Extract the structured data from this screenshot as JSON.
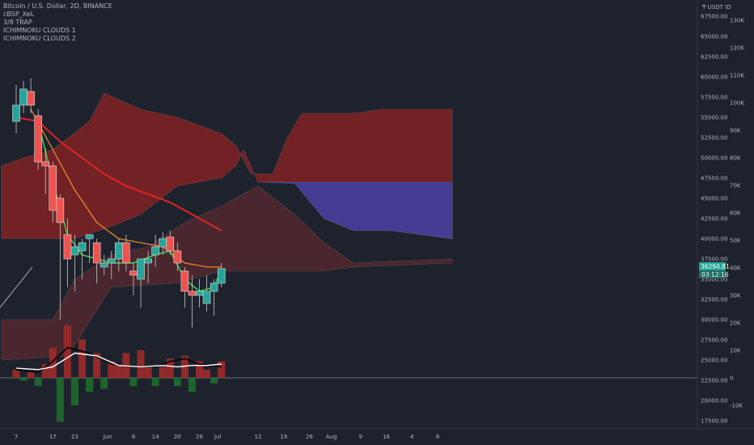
{
  "legend": {
    "symbol": "Bitcoin / U.S. Dollar, 2D, BINANCE",
    "indicators": [
      "cBSP_XeL",
      "3/8 TRAP",
      "ICHIMNOKU CLOUDS 1",
      "ICHIMNOKU CLOUDS 2"
    ]
  },
  "colors": {
    "background": "#1e222d",
    "up_candle": "#26a69a",
    "down_candle": "#ef5350",
    "bull_cloud": "#3f3fa0",
    "bear_cloud": "#8b2323",
    "ma_red": "#e02424",
    "ma_orange": "#e8882d",
    "ma_green": "#39d353"
  },
  "price_axis": {
    "currency_label": "₸ USDT ID",
    "ticks": [
      "67500.00",
      "65000.00",
      "62500.00",
      "60000.00",
      "57500.00",
      "55000.00",
      "52500.00",
      "50000.00",
      "47500.00",
      "45000.00",
      "42500.00",
      "40000.00",
      "37500.00",
      "35000.00",
      "32500.00",
      "30000.00",
      "27500.00",
      "25000.00",
      "22500.00",
      "20000.00",
      "17500.00"
    ],
    "current_price": "36294.81",
    "countdown": "03:12:16"
  },
  "osc_axis": {
    "ticks": [
      "130K",
      "120K",
      "110K",
      "100K",
      "90K",
      "80K",
      "70K",
      "60K",
      "50K",
      "40K",
      "30K",
      "20K",
      "10K",
      "0",
      "-10K"
    ]
  },
  "time_axis": {
    "ticks": [
      {
        "label": "7",
        "date": "2021-05-07"
      },
      {
        "label": "17",
        "date": "2021-05-17"
      },
      {
        "label": "23",
        "date": "2021-05-23"
      },
      {
        "label": "Jun",
        "date": "2021-06-01"
      },
      {
        "label": "8",
        "date": "2021-06-08"
      },
      {
        "label": "14",
        "date": "2021-06-14"
      },
      {
        "label": "20",
        "date": "2021-06-20"
      },
      {
        "label": "26",
        "date": "2021-06-26"
      },
      {
        "label": "Jul",
        "date": "2021-07-01"
      },
      {
        "label": "12",
        "date": "2021-07-12"
      },
      {
        "label": "19",
        "date": "2021-07-19"
      },
      {
        "label": "26",
        "date": "2021-07-26"
      },
      {
        "label": "Aug",
        "date": "2021-08-01"
      },
      {
        "label": "9",
        "date": "2021-08-09"
      },
      {
        "label": "16",
        "date": "2021-08-16"
      },
      {
        "label": "4",
        "date": "2021-08-23"
      },
      {
        "label": "8",
        "date": "2021-08-30"
      }
    ]
  },
  "chart_data": {
    "type": "candlestick",
    "title": "Bitcoin / U.S. Dollar, 2D, BINANCE",
    "ylim": [
      16500,
      69500
    ],
    "candles": [
      {
        "date": "2021-05-07",
        "o": 54500,
        "h": 59000,
        "l": 53000,
        "c": 56500
      },
      {
        "date": "2021-05-09",
        "o": 56500,
        "h": 59500,
        "l": 55500,
        "c": 58500
      },
      {
        "date": "2021-05-11",
        "o": 58200,
        "h": 59800,
        "l": 55500,
        "c": 56500
      },
      {
        "date": "2021-05-13",
        "o": 55200,
        "h": 56000,
        "l": 48500,
        "c": 49500
      },
      {
        "date": "2021-05-15",
        "o": 49500,
        "h": 51200,
        "l": 45500,
        "c": 49000
      },
      {
        "date": "2021-05-17",
        "o": 49000,
        "h": 49500,
        "l": 42000,
        "c": 43500
      },
      {
        "date": "2021-05-19",
        "o": 45000,
        "h": 45500,
        "l": 30000,
        "c": 42000
      },
      {
        "date": "2021-05-21",
        "o": 40500,
        "h": 42500,
        "l": 34000,
        "c": 37500
      },
      {
        "date": "2021-05-23",
        "o": 38000,
        "h": 40500,
        "l": 33500,
        "c": 39000
      },
      {
        "date": "2021-05-25",
        "o": 38500,
        "h": 40000,
        "l": 35000,
        "c": 39500
      },
      {
        "date": "2021-05-27",
        "o": 40000,
        "h": 40500,
        "l": 37000,
        "c": 40500
      },
      {
        "date": "2021-05-29",
        "o": 39500,
        "h": 40000,
        "l": 34500,
        "c": 37000
      },
      {
        "date": "2021-05-31",
        "o": 36500,
        "h": 38000,
        "l": 35500,
        "c": 37000
      },
      {
        "date": "2021-06-02",
        "o": 37000,
        "h": 38500,
        "l": 35000,
        "c": 37500
      },
      {
        "date": "2021-06-04",
        "o": 37500,
        "h": 40000,
        "l": 36000,
        "c": 39500
      },
      {
        "date": "2021-06-06",
        "o": 39500,
        "h": 40500,
        "l": 36000,
        "c": 37000
      },
      {
        "date": "2021-06-08",
        "o": 36000,
        "h": 37000,
        "l": 33000,
        "c": 35500
      },
      {
        "date": "2021-06-10",
        "o": 35000,
        "h": 37500,
        "l": 31500,
        "c": 37500
      },
      {
        "date": "2021-06-12",
        "o": 37000,
        "h": 38500,
        "l": 34500,
        "c": 37500
      },
      {
        "date": "2021-06-14",
        "o": 38000,
        "h": 40500,
        "l": 36500,
        "c": 39000
      },
      {
        "date": "2021-06-16",
        "o": 39000,
        "h": 40800,
        "l": 38000,
        "c": 40000
      },
      {
        "date": "2021-06-18",
        "o": 40200,
        "h": 41000,
        "l": 38000,
        "c": 38500
      },
      {
        "date": "2021-06-20",
        "o": 38500,
        "h": 39500,
        "l": 36000,
        "c": 37000
      },
      {
        "date": "2021-06-22",
        "o": 36000,
        "h": 36500,
        "l": 31500,
        "c": 33500
      },
      {
        "date": "2021-06-24",
        "o": 33500,
        "h": 35500,
        "l": 29000,
        "c": 33000
      },
      {
        "date": "2021-06-26",
        "o": 33000,
        "h": 35000,
        "l": 31500,
        "c": 33500
      },
      {
        "date": "2021-06-28",
        "o": 32000,
        "h": 35500,
        "l": 31000,
        "c": 33500
      },
      {
        "date": "2021-06-30",
        "o": 33500,
        "h": 35000,
        "l": 30500,
        "c": 34500
      },
      {
        "date": "2021-07-02",
        "o": 34500,
        "h": 37000,
        "l": 34000,
        "c": 36295
      }
    ],
    "ma_red": [
      {
        "date": "2021-05-07",
        "y": 55000
      },
      {
        "date": "2021-05-13",
        "y": 54500
      },
      {
        "date": "2021-05-19",
        "y": 52000
      },
      {
        "date": "2021-05-25",
        "y": 50000
      },
      {
        "date": "2021-05-31",
        "y": 48000
      },
      {
        "date": "2021-06-06",
        "y": 46500
      },
      {
        "date": "2021-06-12",
        "y": 45500
      },
      {
        "date": "2021-06-18",
        "y": 44500
      },
      {
        "date": "2021-06-24",
        "y": 43000
      },
      {
        "date": "2021-07-02",
        "y": 41000
      }
    ],
    "ma_orange": [
      {
        "date": "2021-05-11",
        "y": 56000
      },
      {
        "date": "2021-05-17",
        "y": 51000
      },
      {
        "date": "2021-05-23",
        "y": 46000
      },
      {
        "date": "2021-05-29",
        "y": 42000
      },
      {
        "date": "2021-06-04",
        "y": 40000
      },
      {
        "date": "2021-06-10",
        "y": 39500
      },
      {
        "date": "2021-06-16",
        "y": 39000
      },
      {
        "date": "2021-06-22",
        "y": 37000
      },
      {
        "date": "2021-06-28",
        "y": 36500
      },
      {
        "date": "2021-07-02",
        "y": 36500
      }
    ],
    "ma_green": [
      {
        "date": "2021-05-13",
        "y": 54500
      },
      {
        "date": "2021-05-17",
        "y": 47000
      },
      {
        "date": "2021-05-21",
        "y": 40500
      },
      {
        "date": "2021-05-25",
        "y": 38000
      },
      {
        "date": "2021-05-29",
        "y": 37500
      },
      {
        "date": "2021-06-02",
        "y": 37000
      },
      {
        "date": "2021-06-08",
        "y": 37000
      },
      {
        "date": "2021-06-14",
        "y": 38000
      },
      {
        "date": "2021-06-18",
        "y": 38500
      },
      {
        "date": "2021-06-22",
        "y": 35000
      },
      {
        "date": "2021-06-26",
        "y": 33500
      },
      {
        "date": "2021-06-30",
        "y": 34000
      },
      {
        "date": "2021-07-02",
        "y": 36300
      }
    ],
    "cloud1_upper": [
      {
        "date": "2021-05-03",
        "y": 49000
      },
      {
        "date": "2021-05-09",
        "y": 50000
      },
      {
        "date": "2021-05-17",
        "y": 51000
      },
      {
        "date": "2021-05-27",
        "y": 54500
      },
      {
        "date": "2021-05-31",
        "y": 58000
      },
      {
        "date": "2021-06-10",
        "y": 56000
      },
      {
        "date": "2021-06-20",
        "y": 55000
      },
      {
        "date": "2021-07-02",
        "y": 53000
      },
      {
        "date": "2021-07-06",
        "y": 51500
      },
      {
        "date": "2021-07-10",
        "y": 48000
      },
      {
        "date": "2021-07-16",
        "y": 48000
      },
      {
        "date": "2021-07-20",
        "y": 52500
      },
      {
        "date": "2021-07-24",
        "y": 55500
      },
      {
        "date": "2021-08-07",
        "y": 55500
      },
      {
        "date": "2021-08-15",
        "y": 56000
      },
      {
        "date": "2021-09-03",
        "y": 56000
      }
    ],
    "cloud1_lower": [
      {
        "date": "2021-05-03",
        "y": 40000
      },
      {
        "date": "2021-05-23",
        "y": 40000
      },
      {
        "date": "2021-06-02",
        "y": 41500
      },
      {
        "date": "2021-06-10",
        "y": 43000
      },
      {
        "date": "2021-06-20",
        "y": 46500
      },
      {
        "date": "2021-07-02",
        "y": 47500
      },
      {
        "date": "2021-07-06",
        "y": 49000
      },
      {
        "date": "2021-07-08",
        "y": 51000
      },
      {
        "date": "2021-07-12",
        "y": 47000
      },
      {
        "date": "2021-07-22",
        "y": 47000
      },
      {
        "date": "2021-07-30",
        "y": 42500
      },
      {
        "date": "2021-08-07",
        "y": 41000
      },
      {
        "date": "2021-08-17",
        "y": 41000
      },
      {
        "date": "2021-09-03",
        "y": 40000
      }
    ],
    "cloud2_upper": [
      {
        "date": "2021-05-03",
        "y": 30000
      },
      {
        "date": "2021-05-17",
        "y": 30000
      },
      {
        "date": "2021-05-23",
        "y": 35000
      },
      {
        "date": "2021-06-02",
        "y": 38000
      },
      {
        "date": "2021-06-12",
        "y": 39000
      },
      {
        "date": "2021-06-22",
        "y": 42000
      },
      {
        "date": "2021-07-02",
        "y": 44000
      },
      {
        "date": "2021-07-12",
        "y": 46500
      },
      {
        "date": "2021-07-22",
        "y": 43000
      },
      {
        "date": "2021-07-30",
        "y": 39500
      },
      {
        "date": "2021-08-07",
        "y": 37000
      },
      {
        "date": "2021-09-03",
        "y": 37500
      }
    ],
    "cloud2_lower": [
      {
        "date": "2021-05-03",
        "y": 25000
      },
      {
        "date": "2021-05-21",
        "y": 25500
      },
      {
        "date": "2021-06-02",
        "y": 34000
      },
      {
        "date": "2021-06-20",
        "y": 34500
      },
      {
        "date": "2021-07-02",
        "y": 36000
      },
      {
        "date": "2021-07-30",
        "y": 36000
      },
      {
        "date": "2021-08-07",
        "y": 36500
      },
      {
        "date": "2021-09-03",
        "y": 37000
      }
    ],
    "osc_bars": [
      {
        "date": "2021-05-07",
        "y": 3000
      },
      {
        "date": "2021-05-09",
        "y": -1000
      },
      {
        "date": "2021-05-11",
        "y": 2000
      },
      {
        "date": "2021-05-13",
        "y": -3000
      },
      {
        "date": "2021-05-15",
        "y": 5000
      },
      {
        "date": "2021-05-17",
        "y": 11000
      },
      {
        "date": "2021-05-19",
        "y": -16000
      },
      {
        "date": "2021-05-21",
        "y": 19000
      },
      {
        "date": "2021-05-23",
        "y": -10000
      },
      {
        "date": "2021-05-25",
        "y": 14000
      },
      {
        "date": "2021-05-27",
        "y": -5000
      },
      {
        "date": "2021-05-29",
        "y": 9000
      },
      {
        "date": "2021-05-31",
        "y": -4000
      },
      {
        "date": "2021-06-02",
        "y": 6000
      },
      {
        "date": "2021-06-04",
        "y": 5000
      },
      {
        "date": "2021-06-06",
        "y": 9000
      },
      {
        "date": "2021-06-08",
        "y": -3000
      },
      {
        "date": "2021-06-10",
        "y": 10000
      },
      {
        "date": "2021-06-12",
        "y": 4000
      },
      {
        "date": "2021-06-14",
        "y": -3000
      },
      {
        "date": "2021-06-16",
        "y": 4000
      },
      {
        "date": "2021-06-18",
        "y": 7000
      },
      {
        "date": "2021-06-20",
        "y": -3000
      },
      {
        "date": "2021-06-22",
        "y": 8000
      },
      {
        "date": "2021-06-24",
        "y": -5000
      },
      {
        "date": "2021-06-26",
        "y": 6000
      },
      {
        "date": "2021-06-28",
        "y": 3000
      },
      {
        "date": "2021-06-30",
        "y": -2000
      },
      {
        "date": "2021-07-02",
        "y": 6000
      }
    ],
    "osc_line_black": [
      {
        "date": "2021-05-07",
        "y": 3000
      },
      {
        "date": "2021-05-13",
        "y": 2000
      },
      {
        "date": "2021-05-17",
        "y": 6000
      },
      {
        "date": "2021-05-21",
        "y": 11000
      },
      {
        "date": "2021-05-27",
        "y": 9000
      },
      {
        "date": "2021-06-02",
        "y": 5000
      },
      {
        "date": "2021-06-08",
        "y": 4000
      },
      {
        "date": "2021-06-14",
        "y": 4000
      },
      {
        "date": "2021-06-18",
        "y": 6000
      },
      {
        "date": "2021-06-22",
        "y": 7000
      },
      {
        "date": "2021-06-26",
        "y": 5000
      },
      {
        "date": "2021-07-02",
        "y": 4000
      }
    ],
    "osc_line_white": [
      {
        "date": "2021-05-07",
        "y": 3500
      },
      {
        "date": "2021-05-13",
        "y": 3000
      },
      {
        "date": "2021-05-17",
        "y": 4000
      },
      {
        "date": "2021-05-23",
        "y": 9000
      },
      {
        "date": "2021-05-29",
        "y": 8000
      },
      {
        "date": "2021-06-04",
        "y": 4500
      },
      {
        "date": "2021-06-10",
        "y": 4000
      },
      {
        "date": "2021-06-16",
        "y": 4500
      },
      {
        "date": "2021-06-20",
        "y": 4000
      },
      {
        "date": "2021-06-24",
        "y": 4500
      },
      {
        "date": "2021-06-28",
        "y": 4500
      },
      {
        "date": "2021-07-02",
        "y": 5000
      }
    ],
    "osc_zero": 0
  }
}
